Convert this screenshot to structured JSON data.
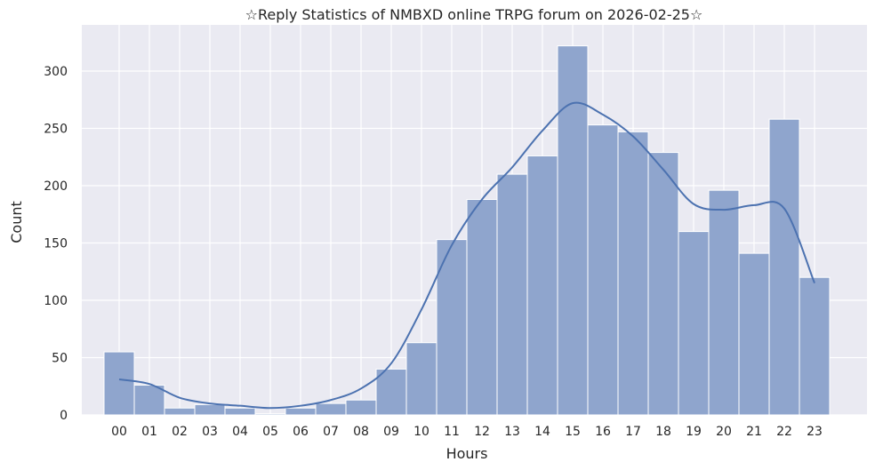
{
  "chart_data": {
    "type": "bar",
    "title": "☆Reply Statistics of NMBXD online TRPG forum on 2026-02-25☆",
    "xlabel": "Hours",
    "ylabel": "Count",
    "ylim": [
      0,
      340
    ],
    "yticks": [
      0,
      50,
      100,
      150,
      200,
      250,
      300
    ],
    "grid": true,
    "categories": [
      "00",
      "01",
      "02",
      "03",
      "04",
      "05",
      "06",
      "07",
      "08",
      "09",
      "10",
      "11",
      "12",
      "13",
      "14",
      "15",
      "16",
      "17",
      "18",
      "19",
      "20",
      "21",
      "22",
      "23"
    ],
    "values": [
      55,
      26,
      6,
      9,
      6,
      1,
      6,
      10,
      13,
      40,
      63,
      153,
      188,
      210,
      226,
      322,
      253,
      247,
      229,
      160,
      196,
      141,
      258,
      120
    ],
    "kde": [
      31,
      27,
      15,
      10,
      8,
      6,
      8,
      13,
      23,
      45,
      92,
      148,
      188,
      216,
      248,
      272,
      262,
      243,
      214,
      184,
      179,
      183,
      180,
      115
    ],
    "colors": {
      "bar": "#8fa5cd",
      "line": "#4c72b0",
      "background": "#eaeaf2"
    }
  }
}
